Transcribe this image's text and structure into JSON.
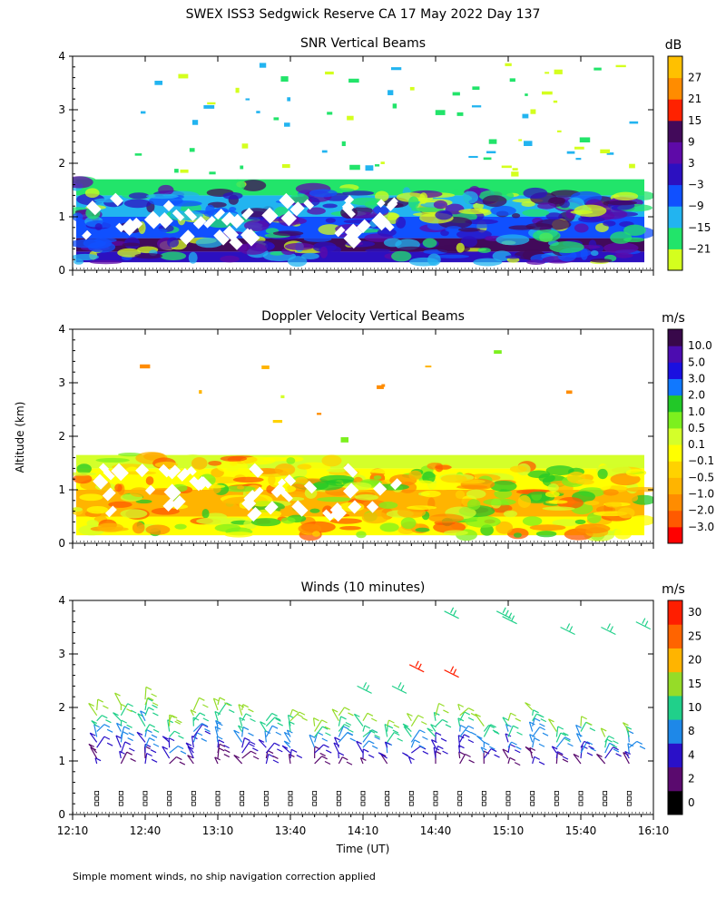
{
  "figure": {
    "title": "SWEX ISS3 Sedgwick Reserve CA  17 May 2022 Day 137",
    "ylabel": "Altitude (km)",
    "xlabel": "Time (UT)",
    "footnote": "Simple moment winds, no ship navigation correction applied",
    "x_ticks": [
      "12:10",
      "12:40",
      "13:10",
      "13:40",
      "14:10",
      "14:40",
      "15:10",
      "15:40",
      "16:10"
    ]
  },
  "chart_data": [
    {
      "type": "heatmap",
      "title": "SNR Vertical Beams",
      "unit": "dB",
      "y_ticks": [
        "0",
        "1",
        "2",
        "3",
        "4"
      ],
      "ylim": [
        0,
        4
      ],
      "colorbar_ticks": [
        "27",
        "21",
        "15",
        "9",
        "3",
        "−3",
        "−9",
        "−15",
        "−21"
      ],
      "colorbar_colors": [
        "#d4ff1e",
        "#22e46a",
        "#22b4f0",
        "#1050ff",
        "#2c10c0",
        "#5e0aa8",
        "#420a5a",
        "#ff2200",
        "#ff8c00",
        "#ffc000"
      ],
      "layers": [
        {
          "range_km": [
            0.15,
            0.35
          ],
          "level_db": -3
        },
        {
          "range_km": [
            0.35,
            0.6
          ],
          "level_db": 9
        },
        {
          "range_km": [
            0.6,
            1.0
          ],
          "level_db": -9
        },
        {
          "range_km": [
            1.0,
            1.4
          ],
          "level_db": -15
        },
        {
          "range_km": [
            1.4,
            1.7
          ],
          "level_db": -21
        }
      ]
    },
    {
      "type": "heatmap",
      "title": "Doppler Velocity Vertical Beams",
      "unit": "m/s",
      "y_ticks": [
        "0",
        "1",
        "2",
        "3",
        "4"
      ],
      "ylim": [
        0,
        4
      ],
      "colorbar_ticks": [
        "10.0",
        "5.0",
        "3.0",
        "2.0",
        "1.0",
        "0.5",
        "0.1",
        "−0.1",
        "−0.5",
        "−1.0",
        "−2.0",
        "−3.0"
      ],
      "colorbar_colors": [
        "#ff0000",
        "#ff5a00",
        "#ff8c00",
        "#ffb400",
        "#ffd200",
        "#ffff00",
        "#d4ff2a",
        "#7cf01e",
        "#22c828",
        "#1078ff",
        "#1a10e0",
        "#4c0cb0",
        "#38084a"
      ],
      "layers": [
        {
          "range_km": [
            0.15,
            0.5
          ],
          "level_m_s": -0.1
        },
        {
          "range_km": [
            0.5,
            1.0
          ],
          "level_m_s": -1.0
        },
        {
          "range_km": [
            1.0,
            1.4
          ],
          "level_m_s": -0.1
        },
        {
          "range_km": [
            1.4,
            1.65
          ],
          "level_m_s": 0.1
        }
      ]
    },
    {
      "type": "barbs",
      "title": "Winds (10 minutes)",
      "unit": "m/s",
      "y_ticks": [
        "0",
        "1",
        "2",
        "3",
        "4"
      ],
      "ylim": [
        0,
        4
      ],
      "colorbar_ticks": [
        "30",
        "25",
        "20",
        "15",
        "10",
        "8",
        "4",
        "2",
        "0"
      ],
      "colorbar_colors": [
        "#000000",
        "#5a0a6e",
        "#2a10c8",
        "#1e88e8",
        "#20d08a",
        "#96dc28",
        "#ffb400",
        "#ff6400",
        "#ff1e00"
      ],
      "profile_times": [
        "12:20",
        "12:30",
        "12:40",
        "12:50",
        "13:00",
        "13:10",
        "13:20",
        "13:30",
        "13:40",
        "13:50",
        "14:00",
        "14:10",
        "14:20",
        "14:30",
        "14:40",
        "14:50",
        "15:00",
        "15:10",
        "15:20",
        "15:30",
        "15:40",
        "15:50",
        "16:00"
      ],
      "profile_tops_km": [
        2.0,
        2.1,
        2.2,
        1.8,
        2.0,
        2.1,
        2.0,
        1.8,
        1.9,
        1.7,
        1.9,
        1.8,
        1.7,
        1.8,
        1.9,
        2.0,
        1.7,
        1.8,
        2.0,
        1.6,
        1.7,
        1.5,
        1.6
      ]
    }
  ]
}
